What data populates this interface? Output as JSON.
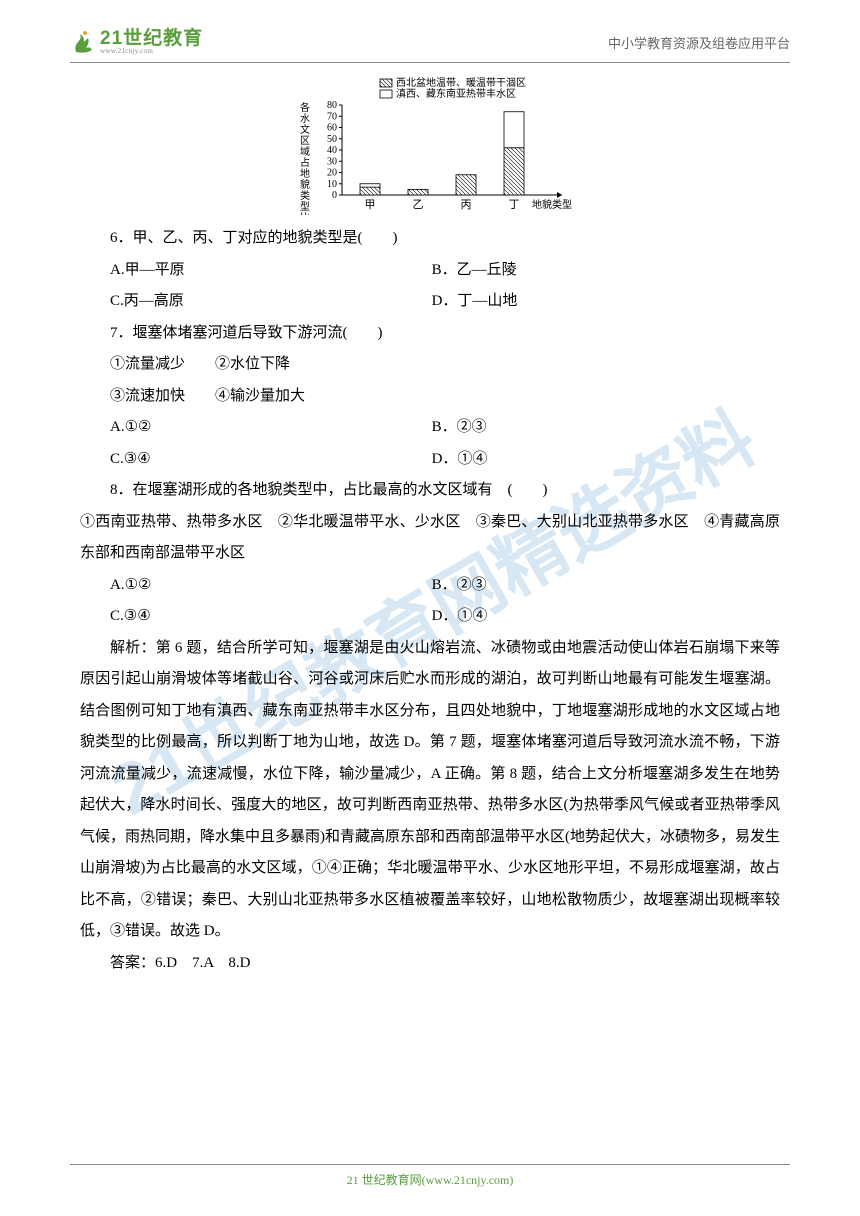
{
  "header": {
    "logo_main": "21世纪教育",
    "logo_url": "www.21cnjy.com",
    "right_text": "中小学教育资源及组卷应用平台"
  },
  "watermark": "21世纪教育网精选资料",
  "chart": {
    "type": "bar",
    "y_axis_label": "各水文区域占地貌类型比例(%)",
    "x_axis_label": "地貌类型",
    "legend": [
      "西北盆地温带、暖温带干涸区",
      "滇西、藏东南亚热带丰水区"
    ],
    "legend_patterns": [
      "hatch",
      "blank"
    ],
    "categories": [
      "甲",
      "乙",
      "丙",
      "丁"
    ],
    "y_ticks": [
      0,
      10,
      20,
      30,
      40,
      50,
      60,
      70,
      80
    ],
    "ylim": [
      0,
      80
    ],
    "series1_values": [
      7,
      5,
      18,
      42
    ],
    "series2_values": [
      3,
      0,
      0,
      32
    ],
    "bar_fill": "#ffffff",
    "bar_stroke": "#000000",
    "axis_color": "#000000",
    "font_size": 10
  },
  "q6": {
    "text": "6．甲、乙、丙、丁对应的地貌类型是(　　)",
    "optA": "A.甲—平原",
    "optB": "B．乙—丘陵",
    "optC": "C.丙—高原",
    "optD": "D．丁—山地"
  },
  "q7": {
    "text": "7．堰塞体堵塞河道后导致下游河流(　　)",
    "sub1": "①流量减少　　②水位下降",
    "sub2": "③流速加快　　④输沙量加大",
    "optA": "A.①②",
    "optB": "B．②③",
    "optC": "C.③④",
    "optD": "D．①④"
  },
  "q8": {
    "text": "8．在堰塞湖形成的各地貌类型中，占比最高的水文区域有　(　　)",
    "subs": "①西南亚热带、热带多水区　②华北暖温带平水、少水区　③秦巴、大别山北亚热带多水区　④青藏高原东部和西南部温带平水区",
    "optA": "A.①②",
    "optB": "B．②③",
    "optC": "C.③④",
    "optD": "D．①④"
  },
  "analysis": {
    "label": "解析：",
    "text": "第 6 题，结合所学可知，堰塞湖是由火山熔岩流、冰碛物或由地震活动使山体岩石崩塌下来等原因引起山崩滑坡体等堵截山谷、河谷或河床后贮水而形成的湖泊，故可判断山地最有可能发生堰塞湖。结合图例可知丁地有滇西、藏东南亚热带丰水区分布，且四处地貌中，丁地堰塞湖形成地的水文区域占地貌类型的比例最高，所以判断丁地为山地，故选 D。第 7 题，堰塞体堵塞河道后导致河流水流不畅，下游河流流量减少，流速减慢，水位下降，输沙量减少，A 正确。第 8 题，结合上文分析堰塞湖多发生在地势起伏大，降水时间长、强度大的地区，故可判断西南亚热带、热带多水区(为热带季风气候或者亚热带季风气候，雨热同期，降水集中且多暴雨)和青藏高原东部和西南部温带平水区(地势起伏大，冰碛物多，易发生山崩滑坡)为占比最高的水文区域，①④正确；华北暖温带平水、少水区地形平坦，不易形成堰塞湖，故占比不高，②错误；秦巴、大别山北亚热带多水区植被覆盖率较好，山地松散物质少，故堰塞湖出现概率较低，③错误。故选 D。"
  },
  "answers": "答案：6.D　7.A　8.D",
  "footer": "21 世纪教育网(www.21cnjy.com)"
}
